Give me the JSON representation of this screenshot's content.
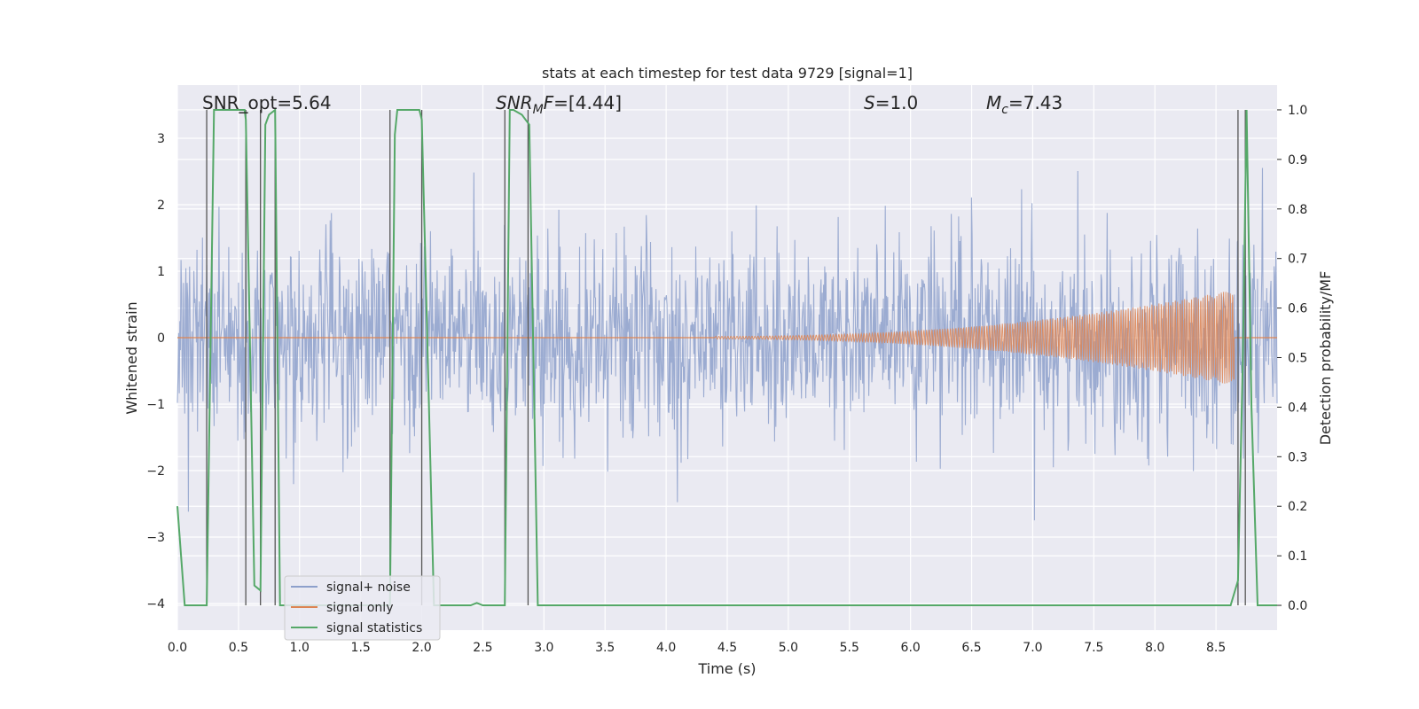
{
  "chart_data": {
    "type": "line",
    "title": "stats at each timestep for test data 9729 [signal=1]",
    "xlabel": "Time (s)",
    "ylabel": "Whitened strain",
    "ylabel_right": "Detection probability/MF",
    "xlim": [
      0,
      9.0
    ],
    "ylim": [
      -4.4,
      3.8
    ],
    "ylim_right": [
      -0.05,
      1.05
    ],
    "x_ticks": [
      "0.0",
      "0.5",
      "1.0",
      "1.5",
      "2.0",
      "2.5",
      "3.0",
      "3.5",
      "4.0",
      "4.5",
      "5.0",
      "5.5",
      "6.0",
      "6.5",
      "7.0",
      "7.5",
      "8.0",
      "8.5"
    ],
    "y_ticks": [
      "3",
      "2",
      "1",
      "0",
      "−1",
      "−2",
      "−3",
      "−4"
    ],
    "y_ticks_right": [
      "1.0",
      "0.9",
      "0.8",
      "0.7",
      "0.6",
      "0.5",
      "0.4",
      "0.3",
      "0.2",
      "0.1",
      "0.0"
    ],
    "grid": true,
    "legend_position": "lower-left",
    "annotations": {
      "snr_opt": "SNR_opt=5.64",
      "snr_mf_label": "SNR",
      "snr_mf_sub": "M",
      "snr_mf_rest": "F=[4.44]",
      "s_label": "S",
      "s_rest": "=1.0",
      "mc_label": "M",
      "mc_sub": "c",
      "mc_rest": "=7.43"
    },
    "series": [
      {
        "name": "signal+ noise",
        "color": "#8da0cb",
        "noise_std": 0.75,
        "peak_abs": 4.0
      },
      {
        "name": "signal only",
        "color": "#dd8452",
        "start": 4.4,
        "end": 8.65,
        "peak_amp": 0.7
      },
      {
        "name": "signal statistics",
        "color": "#55a868",
        "x": [
          0,
          0.06,
          0.24,
          0.3,
          0.55,
          0.56,
          0.63,
          0.68,
          0.72,
          0.75,
          0.8,
          0.84,
          1.0,
          1.2,
          1.4,
          1.6,
          1.74,
          1.78,
          1.8,
          1.98,
          2.0,
          2.1,
          2.4,
          2.45,
          2.5,
          2.68,
          2.72,
          2.75,
          2.82,
          2.88,
          2.95,
          3.0,
          4.0,
          5.0,
          6.0,
          7.0,
          8.0,
          8.62,
          8.68,
          8.72,
          8.75,
          8.79,
          8.84,
          9.0
        ],
        "y": [
          0.2,
          0.0,
          0.0,
          1.0,
          1.0,
          0.98,
          0.04,
          0.03,
          0.97,
          0.99,
          1.0,
          0.0,
          0.0,
          0.0,
          0.0,
          0.0,
          0.0,
          0.95,
          1.0,
          1.0,
          0.98,
          0.0,
          0.0,
          0.005,
          0.0,
          0.0,
          1.0,
          1.0,
          0.99,
          0.97,
          0.0,
          0.0,
          0.0,
          0.0,
          0.0,
          0.0,
          0.0,
          0.0,
          0.05,
          0.5,
          1.0,
          0.4,
          0.0,
          0.0
        ]
      }
    ],
    "vlines_right_axis": [
      {
        "x": 0.24,
        "y0": 0.0,
        "y1": 1.0
      },
      {
        "x": 0.56,
        "y0": 0.0,
        "y1": 1.0
      },
      {
        "x": 0.68,
        "y0": 0.0,
        "y1": 1.0
      },
      {
        "x": 0.8,
        "y0": 0.0,
        "y1": 1.0
      },
      {
        "x": 1.74,
        "y0": 0.0,
        "y1": 1.0
      },
      {
        "x": 2.0,
        "y0": 0.0,
        "y1": 1.0
      },
      {
        "x": 2.68,
        "y0": 0.0,
        "y1": 1.0
      },
      {
        "x": 2.87,
        "y0": 0.0,
        "y1": 1.0
      },
      {
        "x": 8.68,
        "y0": 0.0,
        "y1": 1.0
      },
      {
        "x": 8.74,
        "y0": 0.0,
        "y1": 1.0
      }
    ],
    "line_color": "#555555"
  }
}
